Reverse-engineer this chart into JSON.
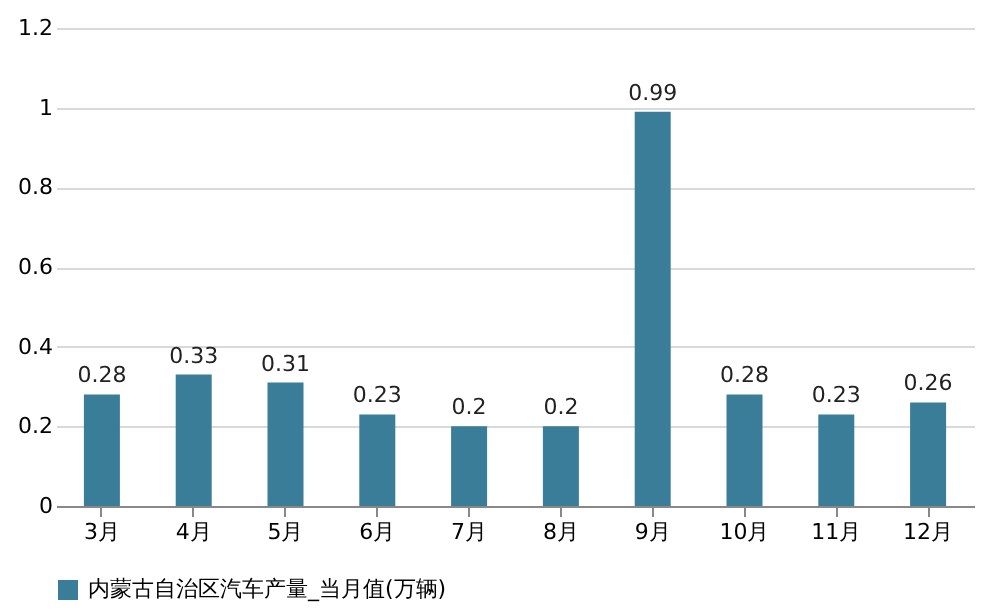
{
  "chart_data": {
    "type": "bar",
    "categories": [
      "3月",
      "4月",
      "5月",
      "6月",
      "7月",
      "8月",
      "9月",
      "10月",
      "11月",
      "12月"
    ],
    "series": [
      {
        "name": "内蒙古自治区汽车产量_当月值(万辆)",
        "color": "#3a7d98",
        "values": [
          0.28,
          0.33,
          0.31,
          0.23,
          0.2,
          0.2,
          0.99,
          0.28,
          0.23,
          0.26
        ]
      }
    ],
    "ylim": [
      0,
      1.2
    ],
    "yticks": [
      0,
      0.2,
      0.4,
      0.6,
      0.8,
      1,
      1.2
    ],
    "grid": "y",
    "legend": "bottom",
    "data_labels": true
  }
}
